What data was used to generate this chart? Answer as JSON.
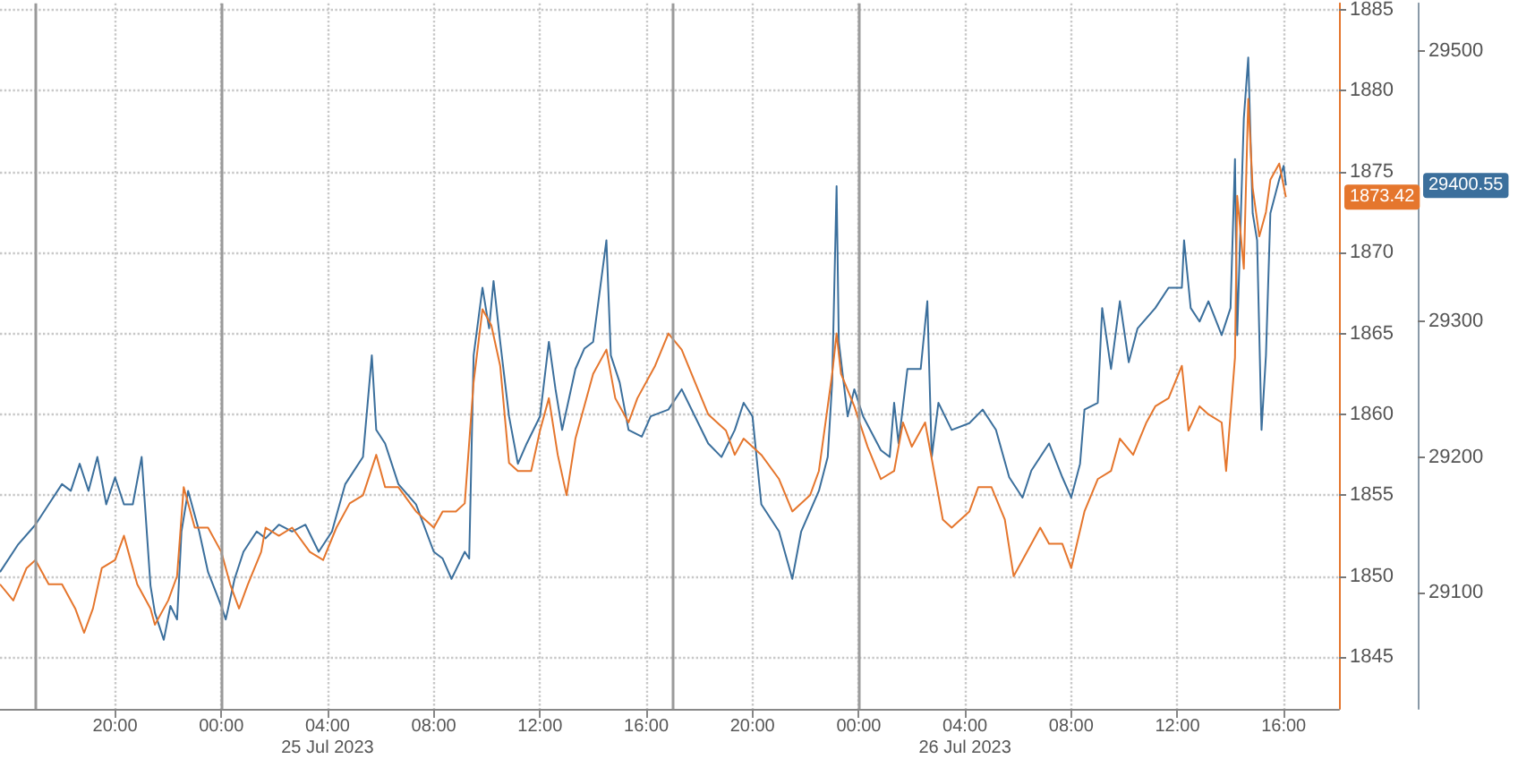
{
  "chart_data": {
    "type": "line",
    "xlim": [
      "2023-07-24T15:40",
      "2023-07-26T18:05"
    ],
    "xticks": [
      {
        "value": "2023-07-24T20:00",
        "label": "20:00"
      },
      {
        "value": "2023-07-25T00:00",
        "label": "00:00"
      },
      {
        "value": "2023-07-25T04:00",
        "label": "04:00\n25 Jul 2023"
      },
      {
        "value": "2023-07-25T08:00",
        "label": "08:00"
      },
      {
        "value": "2023-07-25T12:00",
        "label": "12:00"
      },
      {
        "value": "2023-07-25T16:00",
        "label": "16:00"
      },
      {
        "value": "2023-07-25T20:00",
        "label": "20:00"
      },
      {
        "value": "2023-07-26T00:00",
        "label": "00:00"
      },
      {
        "value": "2023-07-26T04:00",
        "label": "04:00\n26 Jul 2023"
      },
      {
        "value": "2023-07-26T08:00",
        "label": "08:00"
      },
      {
        "value": "2023-07-26T12:00",
        "label": "12:00"
      },
      {
        "value": "2023-07-26T16:00",
        "label": "16:00"
      }
    ],
    "ylim": [
      1841.8,
      1885.4
    ],
    "yticks": [
      1845,
      1850,
      1855,
      1860,
      1865,
      1870,
      1875,
      1880,
      1885
    ],
    "y2lim": [
      29014,
      29535
    ],
    "y2ticks": [
      29100,
      29200,
      29300,
      29500
    ],
    "annotations": [
      "29400.55",
      "1873.42"
    ],
    "grid": true,
    "ref_lines": [
      {
        "axis": "x",
        "value": "2023-07-24T17:00",
        "color": "#999999"
      },
      {
        "axis": "x",
        "value": "2023-07-25T00:00",
        "color": "#9a9a9a"
      },
      {
        "axis": "x",
        "value": "2023-07-25T17:00",
        "color": "#9b9b9b"
      },
      {
        "axis": "x",
        "value": "2023-07-26T00:00",
        "color": "#9c9c9c"
      }
    ],
    "series": [
      {
        "color": "#3b6f9c",
        "axis": "y2",
        "x": [
          "2023-07-24T15:40",
          "2023-07-24T16:20",
          "2023-07-24T17:00",
          "2023-07-24T17:30",
          "2023-07-24T18:00",
          "2023-07-24T18:20",
          "2023-07-24T18:40",
          "2023-07-24T19:00",
          "2023-07-24T19:20",
          "2023-07-24T19:40",
          "2023-07-24T20:00",
          "2023-07-24T20:20",
          "2023-07-24T20:40",
          "2023-07-24T21:00",
          "2023-07-24T21:20",
          "2023-07-24T21:30",
          "2023-07-24T21:50",
          "2023-07-24T22:05",
          "2023-07-24T22:20",
          "2023-07-24T22:30",
          "2023-07-24T22:45",
          "2023-07-24T23:10",
          "2023-07-24T23:30",
          "2023-07-25T00:00",
          "2023-07-25T00:10",
          "2023-07-25T00:30",
          "2023-07-25T00:50",
          "2023-07-25T01:20",
          "2023-07-25T01:40",
          "2023-07-25T02:10",
          "2023-07-25T02:40",
          "2023-07-25T03:10",
          "2023-07-25T03:40",
          "2023-07-25T04:10",
          "2023-07-25T04:40",
          "2023-07-25T05:20",
          "2023-07-25T05:40",
          "2023-07-25T05:50",
          "2023-07-25T06:10",
          "2023-07-25T06:40",
          "2023-07-25T07:20",
          "2023-07-25T08:00",
          "2023-07-25T08:20",
          "2023-07-25T08:40",
          "2023-07-25T09:10",
          "2023-07-25T09:20",
          "2023-07-25T09:30",
          "2023-07-25T09:50",
          "2023-07-25T10:05",
          "2023-07-25T10:15",
          "2023-07-25T10:30",
          "2023-07-25T10:50",
          "2023-07-25T11:10",
          "2023-07-25T11:30",
          "2023-07-25T12:00",
          "2023-07-25T12:20",
          "2023-07-25T12:35",
          "2023-07-25T12:50",
          "2023-07-25T13:20",
          "2023-07-25T13:40",
          "2023-07-25T14:00",
          "2023-07-25T14:30",
          "2023-07-25T14:40",
          "2023-07-25T15:00",
          "2023-07-25T15:20",
          "2023-07-25T15:50",
          "2023-07-25T16:10",
          "2023-07-25T16:50",
          "2023-07-25T17:20",
          "2023-07-25T17:50",
          "2023-07-25T18:20",
          "2023-07-25T18:50",
          "2023-07-25T19:20",
          "2023-07-25T19:40",
          "2023-07-25T20:00",
          "2023-07-25T20:20",
          "2023-07-25T21:00",
          "2023-07-25T21:30",
          "2023-07-25T21:50",
          "2023-07-25T22:30",
          "2023-07-25T22:50",
          "2023-07-25T23:00",
          "2023-07-25T23:10",
          "2023-07-25T23:15",
          "2023-07-25T23:35",
          "2023-07-25T23:50",
          "2023-07-26T00:10",
          "2023-07-26T00:50",
          "2023-07-26T01:10",
          "2023-07-26T01:20",
          "2023-07-26T01:30",
          "2023-07-26T01:50",
          "2023-07-26T02:20",
          "2023-07-26T02:35",
          "2023-07-26T02:45",
          "2023-07-26T03:00",
          "2023-07-26T03:30",
          "2023-07-26T04:10",
          "2023-07-26T04:40",
          "2023-07-26T05:10",
          "2023-07-26T05:40",
          "2023-07-26T06:10",
          "2023-07-26T06:30",
          "2023-07-26T07:10",
          "2023-07-26T07:40",
          "2023-07-26T08:00",
          "2023-07-26T08:20",
          "2023-07-26T08:30",
          "2023-07-26T09:00",
          "2023-07-26T09:10",
          "2023-07-26T09:30",
          "2023-07-26T09:50",
          "2023-07-26T10:10",
          "2023-07-26T10:30",
          "2023-07-26T11:10",
          "2023-07-26T11:40",
          "2023-07-26T12:10",
          "2023-07-26T12:15",
          "2023-07-26T12:30",
          "2023-07-26T12:50",
          "2023-07-26T13:10",
          "2023-07-26T13:40",
          "2023-07-26T14:00",
          "2023-07-26T14:10",
          "2023-07-26T14:15",
          "2023-07-26T14:30",
          "2023-07-26T14:40",
          "2023-07-26T14:50",
          "2023-07-26T15:00",
          "2023-07-26T15:10",
          "2023-07-26T15:20",
          "2023-07-26T15:30",
          "2023-07-26T15:50",
          "2023-07-26T16:00",
          "2023-07-26T16:05"
        ],
        "values": [
          29115,
          29135,
          29150,
          29165,
          29180,
          29175,
          29195,
          29175,
          29200,
          29165,
          29185,
          29165,
          29165,
          29200,
          29105,
          29085,
          29065,
          29090,
          29080,
          29145,
          29175,
          29145,
          29115,
          29090,
          29080,
          29110,
          29130,
          29145,
          29140,
          29150,
          29145,
          29150,
          29130,
          29145,
          29180,
          29200,
          29275,
          29220,
          29210,
          29180,
          29165,
          29130,
          29125,
          29110,
          29130,
          29125,
          29275,
          29325,
          29295,
          29330,
          29285,
          29230,
          29195,
          29210,
          29230,
          29285,
          29250,
          29220,
          29265,
          29280,
          29285,
          29360,
          29275,
          29255,
          29220,
          29215,
          29230,
          29235,
          29250,
          29230,
          29210,
          29200,
          29220,
          29240,
          29230,
          29165,
          29145,
          29110,
          29145,
          29175,
          29200,
          29255,
          29400,
          29285,
          29230,
          29250,
          29230,
          29205,
          29200,
          29240,
          29210,
          29265,
          29265,
          29315,
          29200,
          29240,
          29220,
          29225,
          29235,
          29220,
          29185,
          29170,
          29190,
          29210,
          29185,
          29170,
          29195,
          29235,
          29240,
          29310,
          29265,
          29315,
          29270,
          29295,
          29310,
          29325,
          29325,
          29360,
          29310,
          29300,
          29315,
          29290,
          29310,
          29420,
          29290,
          29450,
          29495,
          29380,
          29360,
          29220,
          29275,
          29380,
          29405,
          29415,
          29400.55
        ],
        "value_labels": [
          null,
          null,
          null,
          null,
          null,
          null,
          null,
          null,
          null,
          null,
          null,
          null,
          null,
          null,
          null,
          null,
          null,
          null,
          null,
          null,
          null,
          null,
          null,
          null,
          null,
          null,
          null,
          null,
          null,
          null,
          null,
          null,
          null,
          null,
          null,
          null,
          null,
          null,
          null,
          null,
          null,
          null,
          null,
          null,
          null,
          null,
          null,
          null,
          null,
          null,
          null,
          null,
          null,
          null,
          null,
          null,
          null,
          null,
          null,
          null,
          null,
          null,
          null,
          null,
          null,
          null,
          null,
          null,
          null,
          null,
          null,
          null,
          null,
          null,
          null,
          null,
          null,
          null,
          null,
          null,
          null,
          null,
          null,
          null,
          null,
          null,
          null,
          null,
          null,
          null,
          null,
          null,
          null,
          null,
          null,
          null,
          null,
          null,
          null,
          null,
          null,
          null,
          null,
          null,
          null,
          null,
          null,
          null,
          null,
          null,
          null,
          null,
          null,
          null,
          null,
          null,
          null,
          null,
          null,
          null,
          null,
          null,
          null,
          null,
          null,
          null,
          null,
          null,
          null,
          null,
          null,
          null,
          null,
          null,
          null
        ]
      },
      {
        "color": "#e5762d",
        "axis": "y",
        "x": [
          "2023-07-24T15:40",
          "2023-07-24T16:10",
          "2023-07-24T16:40",
          "2023-07-24T17:00",
          "2023-07-24T17:30",
          "2023-07-24T18:00",
          "2023-07-24T18:30",
          "2023-07-24T18:50",
          "2023-07-24T19:10",
          "2023-07-24T19:30",
          "2023-07-24T20:00",
          "2023-07-24T20:20",
          "2023-07-24T20:30",
          "2023-07-24T20:50",
          "2023-07-24T21:20",
          "2023-07-24T21:30",
          "2023-07-24T22:00",
          "2023-07-24T22:20",
          "2023-07-24T22:35",
          "2023-07-24T23:00",
          "2023-07-24T23:30",
          "2023-07-25T00:00",
          "2023-07-25T00:20",
          "2023-07-25T00:40",
          "2023-07-25T01:00",
          "2023-07-25T01:30",
          "2023-07-25T01:40",
          "2023-07-25T02:10",
          "2023-07-25T02:40",
          "2023-07-25T03:20",
          "2023-07-25T03:50",
          "2023-07-25T04:20",
          "2023-07-25T04:50",
          "2023-07-25T05:20",
          "2023-07-25T05:50",
          "2023-07-25T06:10",
          "2023-07-25T06:40",
          "2023-07-25T07:20",
          "2023-07-25T08:00",
          "2023-07-25T08:20",
          "2023-07-25T08:50",
          "2023-07-25T09:10",
          "2023-07-25T09:30",
          "2023-07-25T09:50",
          "2023-07-25T10:10",
          "2023-07-25T10:30",
          "2023-07-25T10:50",
          "2023-07-25T11:10",
          "2023-07-25T11:40",
          "2023-07-25T12:00",
          "2023-07-25T12:20",
          "2023-07-25T12:40",
          "2023-07-25T13:00",
          "2023-07-25T13:20",
          "2023-07-25T14:00",
          "2023-07-25T14:30",
          "2023-07-25T14:50",
          "2023-07-25T15:20",
          "2023-07-25T15:40",
          "2023-07-25T16:20",
          "2023-07-25T16:50",
          "2023-07-25T17:20",
          "2023-07-25T17:50",
          "2023-07-25T18:20",
          "2023-07-25T19:00",
          "2023-07-25T19:20",
          "2023-07-25T19:40",
          "2023-07-25T20:20",
          "2023-07-25T21:00",
          "2023-07-25T21:30",
          "2023-07-25T22:10",
          "2023-07-25T22:30",
          "2023-07-25T23:00",
          "2023-07-25T23:10",
          "2023-07-25T23:20",
          "2023-07-25T23:50",
          "2023-07-26T00:20",
          "2023-07-26T00:50",
          "2023-07-26T01:20",
          "2023-07-26T01:40",
          "2023-07-26T02:00",
          "2023-07-26T02:30",
          "2023-07-26T02:50",
          "2023-07-26T03:10",
          "2023-07-26T03:30",
          "2023-07-26T04:10",
          "2023-07-26T04:30",
          "2023-07-26T05:00",
          "2023-07-26T05:30",
          "2023-07-26T05:50",
          "2023-07-26T06:10",
          "2023-07-26T06:50",
          "2023-07-26T07:10",
          "2023-07-26T07:40",
          "2023-07-26T08:00",
          "2023-07-26T08:30",
          "2023-07-26T09:00",
          "2023-07-26T09:30",
          "2023-07-26T09:50",
          "2023-07-26T10:20",
          "2023-07-26T10:50",
          "2023-07-26T11:10",
          "2023-07-26T11:40",
          "2023-07-26T12:10",
          "2023-07-26T12:25",
          "2023-07-26T12:50",
          "2023-07-26T13:10",
          "2023-07-26T13:40",
          "2023-07-26T13:50",
          "2023-07-26T14:10",
          "2023-07-26T14:15",
          "2023-07-26T14:30",
          "2023-07-26T14:40",
          "2023-07-26T14:50",
          "2023-07-26T15:05",
          "2023-07-26T15:20",
          "2023-07-26T15:30",
          "2023-07-26T15:50",
          "2023-07-26T16:05"
        ],
        "values": [
          1849.5,
          1848.5,
          1850.5,
          1851,
          1849.5,
          1849.5,
          1848,
          1846.5,
          1848,
          1850.5,
          1851,
          1852.5,
          1851.5,
          1849.5,
          1848,
          1847,
          1848.5,
          1850,
          1855.5,
          1853,
          1853,
          1851.5,
          1849.5,
          1848,
          1849.5,
          1851.5,
          1853,
          1852.5,
          1853,
          1851.5,
          1851,
          1853,
          1854.5,
          1855,
          1857.5,
          1855.5,
          1855.5,
          1854,
          1853,
          1854,
          1854,
          1854.5,
          1862,
          1866.5,
          1865.5,
          1863,
          1857,
          1856.5,
          1856.5,
          1859,
          1861,
          1857.5,
          1855,
          1858.5,
          1862.5,
          1864,
          1861,
          1859.5,
          1861,
          1863,
          1865,
          1864,
          1862,
          1860,
          1859,
          1857.5,
          1858.5,
          1857.5,
          1856,
          1854,
          1855,
          1856.5,
          1862.5,
          1865,
          1862.5,
          1860.5,
          1858,
          1856,
          1856.5,
          1859.5,
          1858,
          1859.5,
          1856.5,
          1853.5,
          1853,
          1854,
          1855.5,
          1855.5,
          1853.5,
          1850,
          1851,
          1853,
          1852,
          1852,
          1850.5,
          1854,
          1856,
          1856.5,
          1858.5,
          1857.5,
          1859.5,
          1860.5,
          1861,
          1863,
          1859,
          1860.5,
          1860,
          1859.5,
          1856.5,
          1863.5,
          1873.5,
          1869,
          1879.5,
          1874,
          1871,
          1872.5,
          1874.5,
          1875.5,
          1873.42
        ],
        "value_labels": [
          null,
          null,
          null,
          null,
          null,
          null,
          null,
          null,
          null,
          null,
          null,
          null,
          null,
          null,
          null,
          null,
          null,
          null,
          null,
          null,
          null,
          null,
          null,
          null,
          null,
          null,
          null,
          null,
          null,
          null,
          null,
          null,
          null,
          null,
          null,
          null,
          null,
          null,
          null,
          null,
          null,
          null,
          null,
          null,
          null,
          null,
          null,
          null,
          null,
          null,
          null,
          null,
          null,
          null,
          null,
          null,
          null,
          null,
          null,
          null,
          null,
          null,
          null,
          null,
          null,
          null,
          null,
          null,
          null,
          null,
          null,
          null,
          null,
          null,
          null,
          null,
          null,
          null,
          null,
          null,
          null,
          null,
          null,
          null,
          null,
          null,
          null,
          null,
          null,
          null,
          null,
          null,
          null,
          null,
          null,
          null,
          null,
          null,
          null,
          null,
          null,
          null,
          null,
          null,
          null,
          null,
          null,
          null,
          null,
          null,
          null,
          null,
          null,
          null,
          null,
          null,
          null,
          null,
          null
        ]
      }
    ]
  }
}
